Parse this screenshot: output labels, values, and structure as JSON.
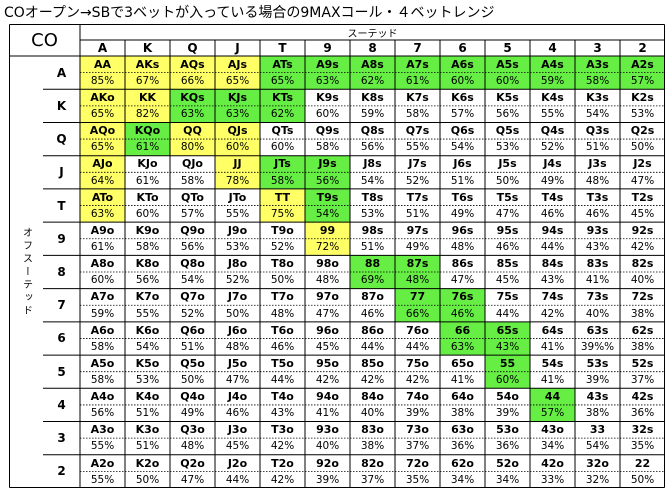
{
  "title": "COオープン→SBで3ベットが入っている場合の9MAXコール・４ベットレンジ",
  "corner_label": "CO",
  "suited_label": "スーテッド",
  "offsuit_label": "オフスーテッド",
  "ranks": [
    "A",
    "K",
    "Q",
    "J",
    "T",
    "9",
    "8",
    "7",
    "6",
    "5",
    "4",
    "3",
    "2"
  ],
  "colors": {
    "yellow": "#ffff66",
    "green": "#66ee44",
    "white": "#ffffff",
    "border": "#000000"
  },
  "hands": [
    [
      "AA",
      "AKs",
      "AQs",
      "AJs",
      "ATs",
      "A9s",
      "A8s",
      "A7s",
      "A6s",
      "A5s",
      "A4s",
      "A3s",
      "A2s"
    ],
    [
      "AKo",
      "KK",
      "KQs",
      "KJs",
      "KTs",
      "K9s",
      "K8s",
      "K7s",
      "K6s",
      "K5s",
      "K4s",
      "K3s",
      "K2s"
    ],
    [
      "AQo",
      "KQo",
      "QQ",
      "QJs",
      "QTs",
      "Q9s",
      "Q8s",
      "Q7s",
      "Q6s",
      "Q5s",
      "Q4s",
      "Q3s",
      "Q2s"
    ],
    [
      "AJo",
      "KJo",
      "QJo",
      "JJ",
      "JTs",
      "J9s",
      "J8s",
      "J7s",
      "J6s",
      "J5s",
      "J4s",
      "J3s",
      "J2s"
    ],
    [
      "ATo",
      "KTo",
      "QTo",
      "JTo",
      "TT",
      "T9s",
      "T8s",
      "T7s",
      "T6s",
      "T5s",
      "T4s",
      "T3s",
      "T2s"
    ],
    [
      "A9o",
      "K9o",
      "Q9o",
      "J9o",
      "T9o",
      "99",
      "98s",
      "97s",
      "96s",
      "95s",
      "94s",
      "93s",
      "92s"
    ],
    [
      "A8o",
      "K8o",
      "Q8o",
      "J8o",
      "T8o",
      "98o",
      "88",
      "87s",
      "86s",
      "85s",
      "84s",
      "83s",
      "82s"
    ],
    [
      "A7o",
      "K7o",
      "Q7o",
      "J7o",
      "T7o",
      "97o",
      "87o",
      "77",
      "76s",
      "75s",
      "74s",
      "73s",
      "72s"
    ],
    [
      "A6o",
      "K6o",
      "Q6o",
      "J6o",
      "T6o",
      "96o",
      "86o",
      "76o",
      "66",
      "65s",
      "64s",
      "63s",
      "62s"
    ],
    [
      "A5o",
      "K5o",
      "Q5o",
      "J5o",
      "T5o",
      "95o",
      "85o",
      "75o",
      "65o",
      "55",
      "54s",
      "53s",
      "52s"
    ],
    [
      "A4o",
      "K4o",
      "Q4o",
      "J4o",
      "T4o",
      "94o",
      "84o",
      "74o",
      "64o",
      "54o",
      "44",
      "43s",
      "42s"
    ],
    [
      "A3o",
      "K3o",
      "Q3o",
      "J3o",
      "T3o",
      "93o",
      "83o",
      "73o",
      "63o",
      "53o",
      "43o",
      "33",
      "32s"
    ],
    [
      "A2o",
      "K2o",
      "Q2o",
      "J2o",
      "T2o",
      "92o",
      "82o",
      "72o",
      "62o",
      "52o",
      "42o",
      "32o",
      "22"
    ]
  ],
  "equities": [
    [
      "85%",
      "67%",
      "66%",
      "65%",
      "65%",
      "63%",
      "62%",
      "61%",
      "60%",
      "60%",
      "59%",
      "58%",
      "57%"
    ],
    [
      "65%",
      "82%",
      "63%",
      "63%",
      "62%",
      "60%",
      "59%",
      "58%",
      "57%",
      "56%",
      "55%",
      "54%",
      "53%"
    ],
    [
      "65%",
      "61%",
      "80%",
      "60%",
      "60%",
      "58%",
      "56%",
      "55%",
      "54%",
      "53%",
      "52%",
      "51%",
      "50%"
    ],
    [
      "64%",
      "61%",
      "58%",
      "78%",
      "58%",
      "56%",
      "54%",
      "52%",
      "51%",
      "50%",
      "49%",
      "48%",
      "47%"
    ],
    [
      "63%",
      "60%",
      "57%",
      "55%",
      "75%",
      "54%",
      "53%",
      "51%",
      "49%",
      "47%",
      "46%",
      "46%",
      "45%"
    ],
    [
      "61%",
      "58%",
      "56%",
      "53%",
      "52%",
      "72%",
      "51%",
      "49%",
      "48%",
      "46%",
      "44%",
      "43%",
      "42%"
    ],
    [
      "60%",
      "56%",
      "54%",
      "52%",
      "50%",
      "48%",
      "69%",
      "48%",
      "47%",
      "45%",
      "43%",
      "41%",
      "40%"
    ],
    [
      "59%",
      "55%",
      "52%",
      "50%",
      "48%",
      "47%",
      "46%",
      "66%",
      "46%",
      "44%",
      "42%",
      "40%",
      "38%"
    ],
    [
      "58%",
      "54%",
      "51%",
      "48%",
      "46%",
      "45%",
      "44%",
      "44%",
      "63%",
      "43%",
      "41%",
      "39%%",
      "38%"
    ],
    [
      "58%",
      "53%",
      "50%",
      "47%",
      "44%",
      "42%",
      "42%",
      "42%",
      "41%",
      "60%",
      "41%",
      "39%",
      "37%"
    ],
    [
      "56%",
      "51%",
      "49%",
      "46%",
      "43%",
      "41%",
      "40%",
      "39%",
      "38%",
      "39%",
      "57%",
      "38%",
      "36%"
    ],
    [
      "55%",
      "51%",
      "48%",
      "45%",
      "42%",
      "40%",
      "38%",
      "37%",
      "36%",
      "36%",
      "34%",
      "54%",
      "35%"
    ],
    [
      "55%",
      "50%",
      "47%",
      "44%",
      "42%",
      "39%",
      "37%",
      "35%",
      "34%",
      "34%",
      "33%",
      "32%",
      "50%"
    ]
  ],
  "highlights": [
    [
      "yellow",
      "yellow",
      "yellow",
      "yellow",
      "green",
      "green",
      "green",
      "green",
      "green",
      "green",
      "green",
      "green",
      "green"
    ],
    [
      "yellow",
      "yellow",
      "green",
      "green",
      "green",
      "white",
      "white",
      "white",
      "white",
      "white",
      "white",
      "white",
      "white"
    ],
    [
      "yellow",
      "green",
      "yellow",
      "yellow",
      "white",
      "white",
      "white",
      "white",
      "white",
      "white",
      "white",
      "white",
      "white"
    ],
    [
      "yellow",
      "white",
      "white",
      "yellow",
      "green",
      "green",
      "white",
      "white",
      "white",
      "white",
      "white",
      "white",
      "white"
    ],
    [
      "yellow",
      "white",
      "white",
      "white",
      "yellow",
      "green",
      "white",
      "white",
      "white",
      "white",
      "white",
      "white",
      "white"
    ],
    [
      "white",
      "white",
      "white",
      "white",
      "white",
      "yellow",
      "white",
      "white",
      "white",
      "white",
      "white",
      "white",
      "white"
    ],
    [
      "white",
      "white",
      "white",
      "white",
      "white",
      "white",
      "green",
      "green",
      "white",
      "white",
      "white",
      "white",
      "white"
    ],
    [
      "white",
      "white",
      "white",
      "white",
      "white",
      "white",
      "white",
      "green",
      "green",
      "white",
      "white",
      "white",
      "white"
    ],
    [
      "white",
      "white",
      "white",
      "white",
      "white",
      "white",
      "white",
      "white",
      "green",
      "green",
      "white",
      "white",
      "white"
    ],
    [
      "white",
      "white",
      "white",
      "white",
      "white",
      "white",
      "white",
      "white",
      "white",
      "green",
      "white",
      "white",
      "white"
    ],
    [
      "white",
      "white",
      "white",
      "white",
      "white",
      "white",
      "white",
      "white",
      "white",
      "white",
      "green",
      "white",
      "white"
    ],
    [
      "white",
      "white",
      "white",
      "white",
      "white",
      "white",
      "white",
      "white",
      "white",
      "white",
      "white",
      "white",
      "white"
    ],
    [
      "white",
      "white",
      "white",
      "white",
      "white",
      "white",
      "white",
      "white",
      "white",
      "white",
      "white",
      "white",
      "white"
    ]
  ]
}
